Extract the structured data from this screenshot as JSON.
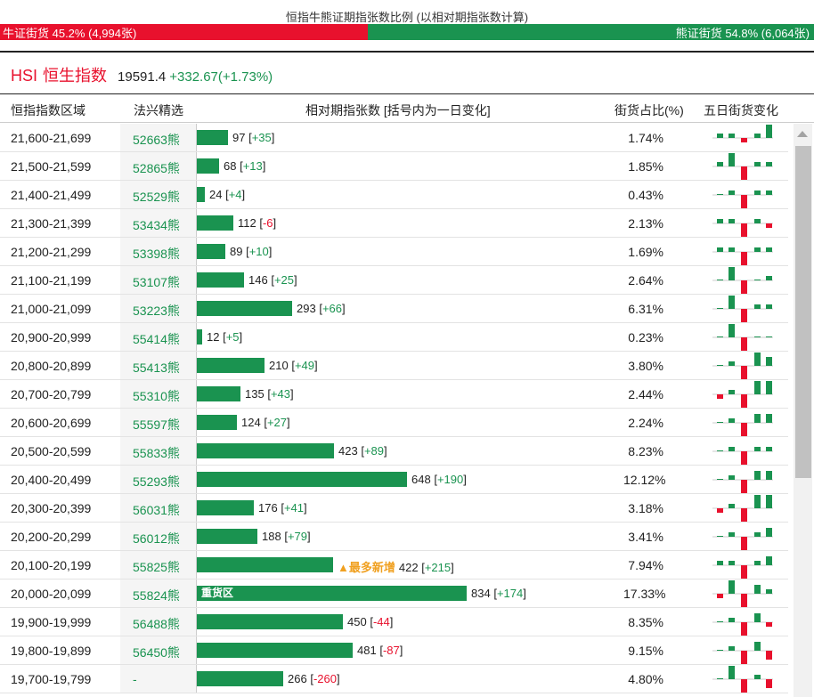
{
  "title": "恒指牛熊证期指张数比例 (以相对期指张数计算)",
  "ratio": {
    "bull_label": "牛证街货 45.2% (4,994张)",
    "bull_fraction": 0.452,
    "bear_label": "熊证街货 54.8% (6,064张)"
  },
  "index": {
    "code": "HSI",
    "name": "恒生指数",
    "price": "19591.4",
    "change": "+332.67",
    "change_pct": "(+1.73%)"
  },
  "headers": {
    "range": "恒指指数区域",
    "pick": "法兴精选",
    "contracts": "相对期指张数 [括号内为一日变化]",
    "share": "街货占比(%)",
    "trend": "五日街货变化"
  },
  "colors": {
    "bull": "#e8112d",
    "bear": "#1a9350",
    "highlight": "#f0a020"
  },
  "rows": [
    {
      "range": "21,600-21,699",
      "code": "52663熊",
      "contracts": 97,
      "change": "+35",
      "share": "1.74%",
      "trend": [
        1,
        1,
        -1,
        1,
        3
      ]
    },
    {
      "range": "21,500-21,599",
      "code": "52865熊",
      "contracts": 68,
      "change": "+13",
      "share": "1.85%",
      "trend": [
        1,
        3,
        -4,
        1,
        1
      ]
    },
    {
      "range": "21,400-21,499",
      "code": "52529熊",
      "contracts": 24,
      "change": "+4",
      "share": "0.43%",
      "trend": [
        0,
        1,
        -3,
        1,
        1
      ]
    },
    {
      "range": "21,300-21,399",
      "code": "53434熊",
      "contracts": 112,
      "change": "-6",
      "share": "2.13%",
      "trend": [
        1,
        1,
        -3,
        1,
        -1
      ]
    },
    {
      "range": "21,200-21,299",
      "code": "53398熊",
      "contracts": 89,
      "change": "+10",
      "share": "1.69%",
      "trend": [
        1,
        1,
        -3,
        1,
        1
      ]
    },
    {
      "range": "21,100-21,199",
      "code": "53107熊",
      "contracts": 146,
      "change": "+25",
      "share": "2.64%",
      "trend": [
        0,
        3,
        -3,
        0,
        1
      ]
    },
    {
      "range": "21,000-21,099",
      "code": "53223熊",
      "contracts": 293,
      "change": "+66",
      "share": "6.31%",
      "trend": [
        0,
        3,
        -3,
        1,
        1
      ]
    },
    {
      "range": "20,900-20,999",
      "code": "55414熊",
      "contracts": 12,
      "change": "+5",
      "share": "0.23%",
      "trend": [
        0,
        3,
        -3,
        0,
        0
      ]
    },
    {
      "range": "20,800-20,899",
      "code": "55413熊",
      "contracts": 210,
      "change": "+49",
      "share": "3.80%",
      "trend": [
        0,
        1,
        -3,
        3,
        2
      ]
    },
    {
      "range": "20,700-20,799",
      "code": "55310熊",
      "contracts": 135,
      "change": "+43",
      "share": "2.44%",
      "trend": [
        -1,
        1,
        -3,
        3,
        3
      ]
    },
    {
      "range": "20,600-20,699",
      "code": "55597熊",
      "contracts": 124,
      "change": "+27",
      "share": "2.24%",
      "trend": [
        0,
        1,
        -3,
        2,
        2
      ]
    },
    {
      "range": "20,500-20,599",
      "code": "55833熊",
      "contracts": 423,
      "change": "+89",
      "share": "8.23%",
      "trend": [
        0,
        1,
        -3,
        1,
        1
      ]
    },
    {
      "range": "20,400-20,499",
      "code": "55293熊",
      "contracts": 648,
      "change": "+190",
      "share": "12.12%",
      "trend": [
        0,
        1,
        -3,
        2,
        2
      ]
    },
    {
      "range": "20,300-20,399",
      "code": "56031熊",
      "contracts": 176,
      "change": "+41",
      "share": "3.18%",
      "trend": [
        -1,
        1,
        -3,
        3,
        3
      ]
    },
    {
      "range": "20,200-20,299",
      "code": "56012熊",
      "contracts": 188,
      "change": "+79",
      "share": "3.41%",
      "trend": [
        0,
        1,
        -3,
        1,
        2
      ]
    },
    {
      "range": "20,100-20,199",
      "code": "55825熊",
      "contracts": 422,
      "change": "+215",
      "share": "7.94%",
      "trend": [
        1,
        1,
        -3,
        1,
        2
      ],
      "tag": "▲最多新增"
    },
    {
      "range": "20,000-20,099",
      "code": "55824熊",
      "contracts": 834,
      "change": "+174",
      "share": "17.33%",
      "trend": [
        -1,
        3,
        -3,
        2,
        1
      ],
      "bar_text": "重货区"
    },
    {
      "range": "19,900-19,999",
      "code": "56488熊",
      "contracts": 450,
      "change": "-44",
      "share": "8.35%",
      "trend": [
        0,
        1,
        -3,
        2,
        -1
      ]
    },
    {
      "range": "19,800-19,899",
      "code": "56450熊",
      "contracts": 481,
      "change": "-87",
      "share": "9.15%",
      "trend": [
        0,
        1,
        -3,
        2,
        -2
      ]
    },
    {
      "range": "19,700-19,799",
      "code": "-",
      "contracts": 266,
      "change": "-260",
      "share": "4.80%",
      "trend": [
        0,
        3,
        -3,
        1,
        -2
      ]
    }
  ]
}
